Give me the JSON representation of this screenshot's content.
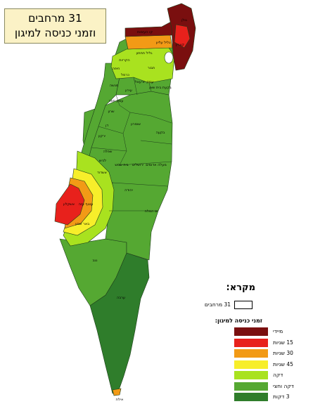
{
  "title": {
    "line1": "31 מרחבים",
    "line2": "וזמני כניסה למיגון"
  },
  "legend": {
    "title": "מקרא:",
    "regions_label": "31 מרחבים",
    "subtitle": "זמני כניסה למיגון:",
    "items": [
      {
        "label": "מיידי",
        "color": "#7a0f0f"
      },
      {
        "label": "15 שניות",
        "color": "#e8211c"
      },
      {
        "label": "30 שניות",
        "color": "#f29a16"
      },
      {
        "label": "45 שניות",
        "color": "#f7ee2a"
      },
      {
        "label": "דקה",
        "color": "#a9e21f"
      },
      {
        "label": "דקה וחצי",
        "color": "#55a832"
      },
      {
        "label": "3 דקות",
        "color": "#2f7d2b"
      }
    ]
  },
  "map_labels": {
    "kav_imut": "קו העימות",
    "golan": "גולן",
    "katzrin": "קצרין",
    "galil_elyon": "גליל עליון",
    "galil_tachton": "גליל תחתון",
    "hakrayot": "הקריות",
    "haifa": "חיפה",
    "tavor": "תבור",
    "carmel": "כרמל",
    "emek_yizrael": "עמק יזרעאל",
    "bikat_beit_shean": "בקעת בית שאן",
    "menashe": "מנשה",
    "iron": "עירון",
    "emek_hefer": "עמק חפר",
    "sharon": "שרון",
    "shomron": "שומרון",
    "dan": "דן",
    "yarkon": "ירקון",
    "bika": "בקעה",
    "shfela": "שפלה",
    "lachish": "לכיש",
    "maale_adumim": "מעלה אדומים",
    "jerusalem": "ירושלים",
    "beit_shemesh": "בית שמש",
    "ashdod": "אשדוד",
    "yehuda": "יהודה",
    "yam_hamelach": "ים המלח",
    "ashkelon": "אשקלון",
    "otef_aza": "עוטף עזה",
    "beer_sheva": "באר שבע",
    "negev": "נגב",
    "arava": "ערבה",
    "eilat": "אילת"
  }
}
